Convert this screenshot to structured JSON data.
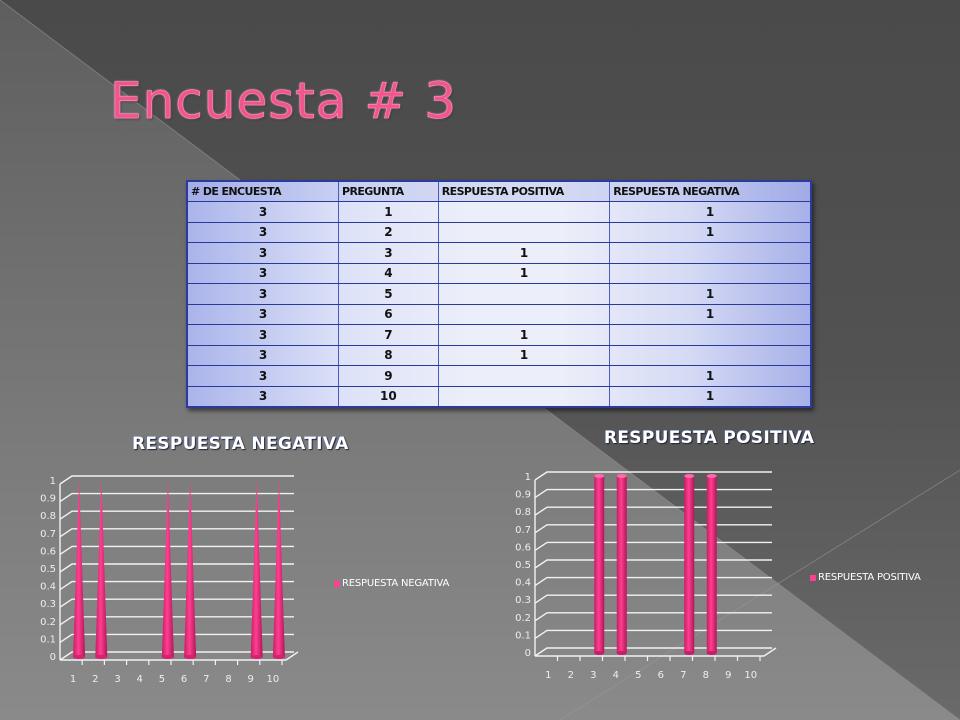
{
  "slide": {
    "title": "Encuesta # 3",
    "colors": {
      "title": "#f0568e",
      "bar": "#ff3f8f",
      "table_border": "#2b3a9c",
      "background_dark": "#4a4a4a",
      "background_light": "#7a7a7a"
    }
  },
  "table": {
    "headers": [
      "# DE ENCUESTA",
      "PREGUNTA",
      "RESPUESTA POSITIVA",
      "RESPUESTA NEGATIVA"
    ],
    "rows": [
      [
        "3",
        "1",
        "",
        "1"
      ],
      [
        "3",
        "2",
        "",
        "1"
      ],
      [
        "3",
        "3",
        "1",
        ""
      ],
      [
        "3",
        "4",
        "1",
        ""
      ],
      [
        "3",
        "5",
        "",
        "1"
      ],
      [
        "3",
        "6",
        "",
        "1"
      ],
      [
        "3",
        "7",
        "1",
        ""
      ],
      [
        "3",
        "8",
        "1",
        ""
      ],
      [
        "3",
        "9",
        "",
        "1"
      ],
      [
        "3",
        "10",
        "",
        "1"
      ]
    ]
  },
  "charts": {
    "negative": {
      "title": "RESPUESTA NEGATIVA",
      "legend": "RESPUESTA NEGATIVA"
    },
    "positive": {
      "title": "RESPUESTA POSITIVA",
      "legend": "RESPUESTA POSITIVA"
    }
  },
  "chart_data": [
    {
      "type": "bar",
      "title": "RESPUESTA NEGATIVA",
      "style": "3d-cone",
      "categories": [
        "1",
        "2",
        "3",
        "4",
        "5",
        "6",
        "7",
        "8",
        "9",
        "10"
      ],
      "series": [
        {
          "name": "RESPUESTA NEGATIVA",
          "values": [
            1,
            1,
            0,
            0,
            1,
            1,
            0,
            0,
            1,
            1
          ]
        }
      ],
      "xlabel": "",
      "ylabel": "",
      "ylim": [
        0,
        1
      ],
      "yticks": [
        "0",
        "0.1",
        "0.2",
        "0.3",
        "0.4",
        "0.5",
        "0.6",
        "0.7",
        "0.8",
        "0.9",
        "1"
      ],
      "grid": true,
      "legend_position": "right"
    },
    {
      "type": "bar",
      "title": "RESPUESTA POSITIVA",
      "style": "3d-cylinder",
      "categories": [
        "1",
        "2",
        "3",
        "4",
        "5",
        "6",
        "7",
        "8",
        "9",
        "10"
      ],
      "series": [
        {
          "name": "RESPUESTA POSITIVA",
          "values": [
            0,
            0,
            1,
            1,
            0,
            0,
            1,
            1,
            0,
            0
          ]
        }
      ],
      "xlabel": "",
      "ylabel": "",
      "ylim": [
        0,
        1
      ],
      "yticks": [
        "0",
        "0.1",
        "0.2",
        "0.3",
        "0.4",
        "0.5",
        "0.6",
        "0.7",
        "0.8",
        "0.9",
        "1"
      ],
      "grid": true,
      "legend_position": "right"
    }
  ]
}
